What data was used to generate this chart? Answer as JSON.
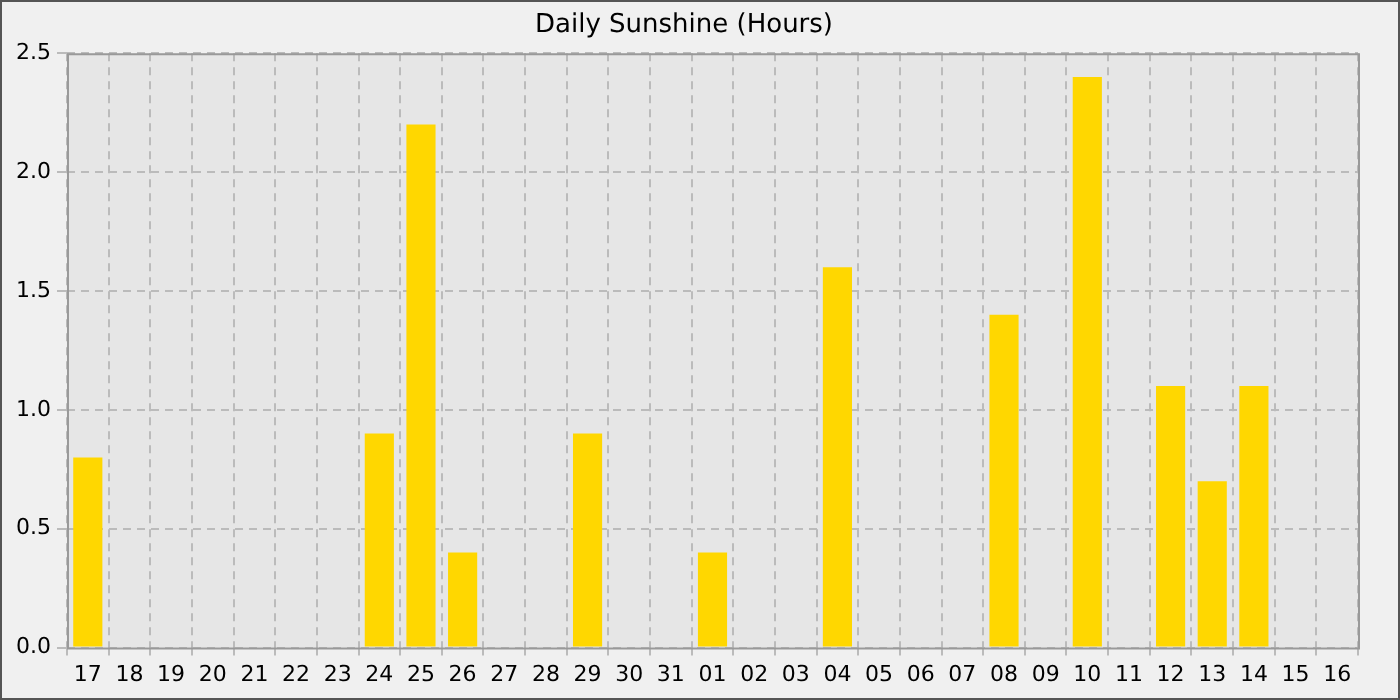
{
  "chart_data": {
    "type": "bar",
    "title": "Daily Sunshine (Hours)",
    "categories": [
      "17",
      "18",
      "19",
      "20",
      "21",
      "22",
      "23",
      "24",
      "25",
      "26",
      "27",
      "28",
      "29",
      "30",
      "31",
      "01",
      "02",
      "03",
      "04",
      "05",
      "06",
      "07",
      "08",
      "09",
      "10",
      "11",
      "12",
      "13",
      "14",
      "15",
      "16"
    ],
    "values": [
      0.8,
      0,
      0,
      0,
      0,
      0,
      0,
      0.9,
      2.2,
      0.4,
      0,
      0,
      0.9,
      0,
      0,
      0.4,
      0,
      0,
      1.6,
      0,
      0,
      0,
      1.4,
      0,
      2.4,
      0,
      1.1,
      0.7,
      1.1,
      0,
      0
    ],
    "color": "#ffd700",
    "ylim": [
      0,
      2.5
    ],
    "yticks": [
      {
        "value": 0,
        "label": "0.0"
      },
      0.5,
      {
        "value": 1,
        "label": "1.0"
      },
      1.5,
      {
        "value": 2,
        "label": "2.0"
      },
      2.5
    ],
    "grid": true
  }
}
